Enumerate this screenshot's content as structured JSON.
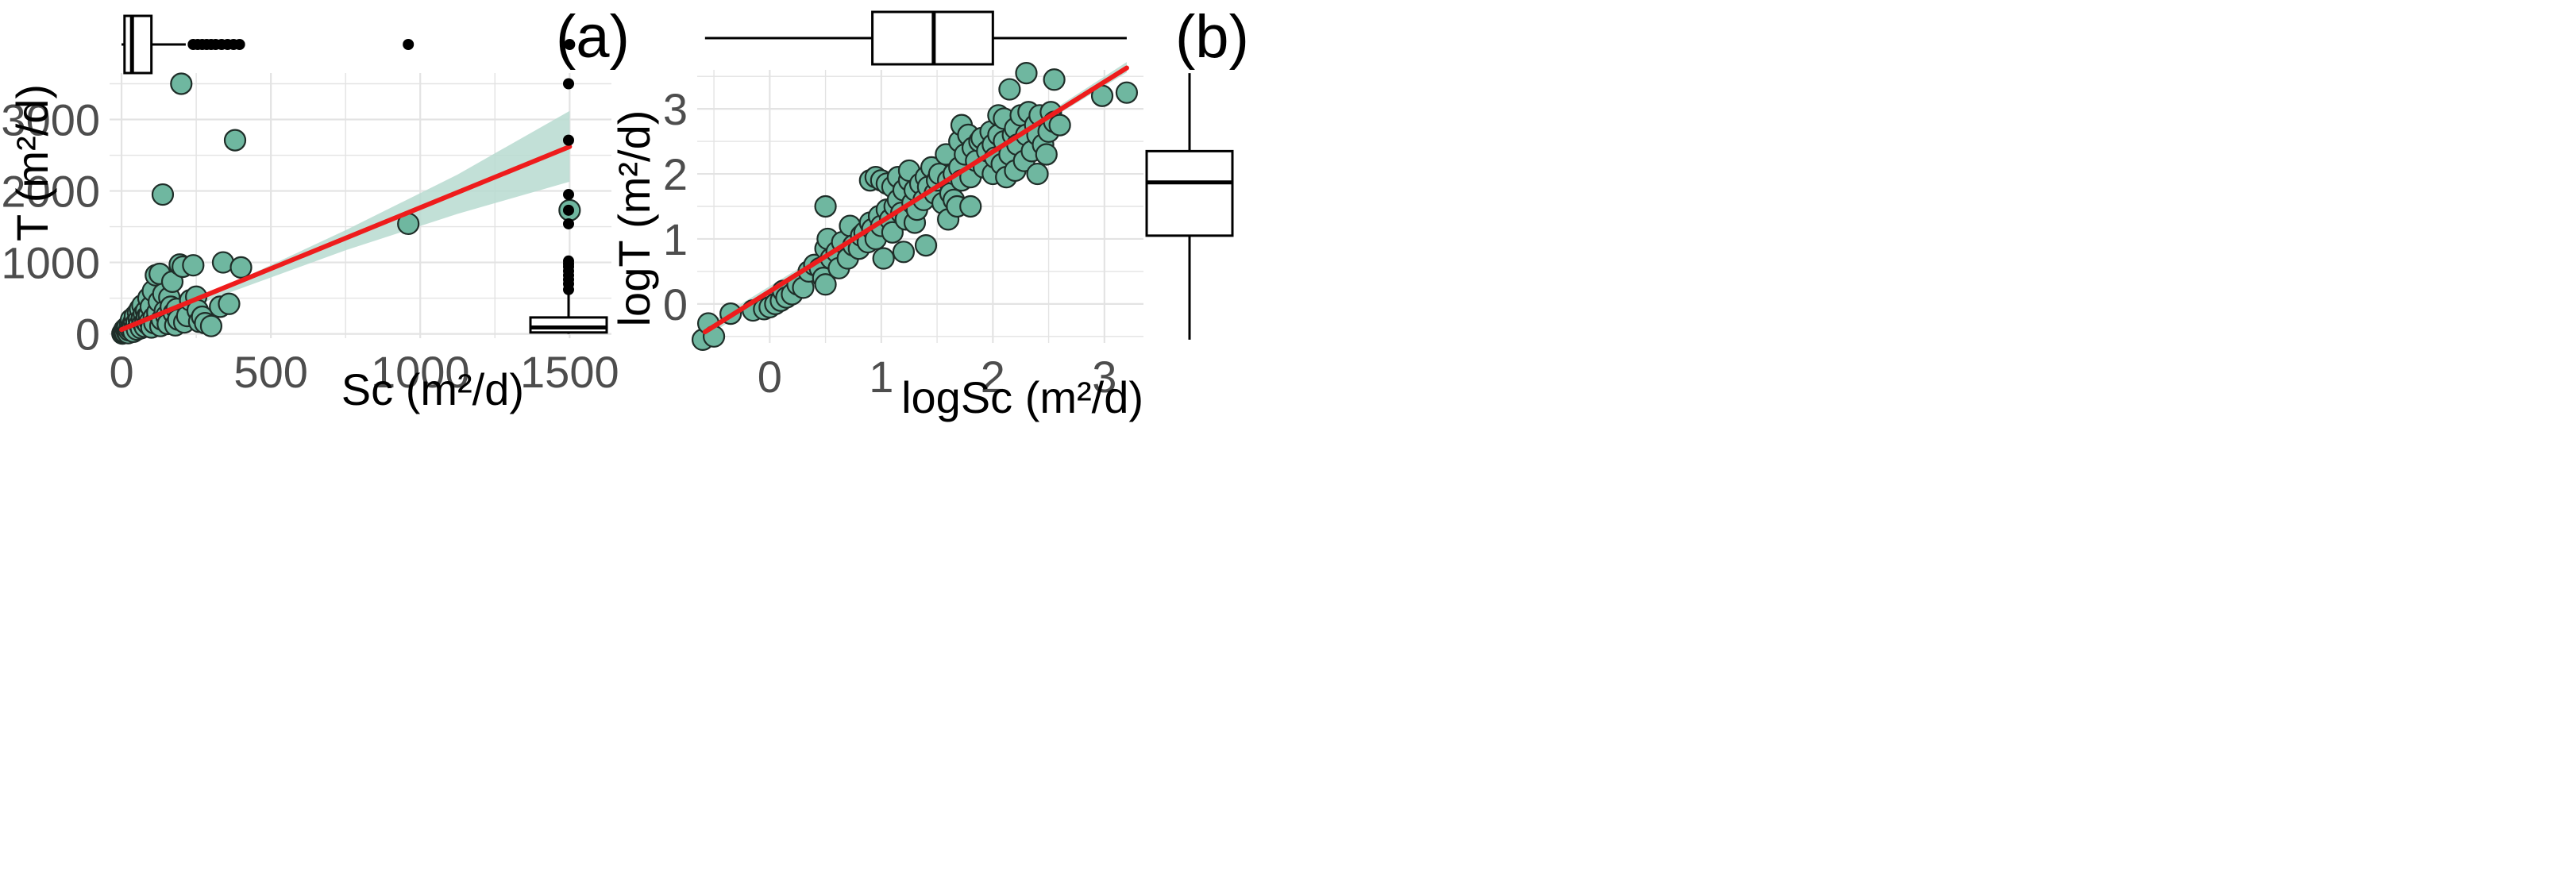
{
  "colors": {
    "point_fill": "#6fb7a0",
    "point_stroke": "#1f2d28",
    "fit_line": "#ee1c1c",
    "ribbon": "#b7dad0",
    "grid": "#e3e3e3",
    "box_stroke": "#000000"
  },
  "chart_data": [
    {
      "type": "scatter",
      "panel_label": "(a)",
      "xlabel": "Sc (m²/d)",
      "ylabel": "T (m²/d)",
      "xlim": [
        -40,
        1640
      ],
      "ylim": [
        -60,
        3650
      ],
      "x_ticks": [
        0,
        500,
        1000,
        1500
      ],
      "x_tick_labels": [
        "0",
        "500",
        "1000",
        "1500"
      ],
      "y_ticks": [
        0,
        1000,
        2000,
        3000
      ],
      "y_tick_labels": [
        "0",
        "1000",
        "2000",
        "3000"
      ],
      "grid": true,
      "fit": {
        "x0": 0,
        "y0": 60,
        "x1": 1500,
        "y1": 2620
      },
      "ribbon": {
        "x": [
          0,
          375,
          750,
          1125,
          1500
        ],
        "lower": [
          10,
          600,
          1170,
          1680,
          2130
        ],
        "upper": [
          110,
          720,
          1450,
          2230,
          3120
        ]
      },
      "points": [
        [
          3,
          5
        ],
        [
          5,
          20
        ],
        [
          8,
          40
        ],
        [
          10,
          60
        ],
        [
          12,
          15
        ],
        [
          15,
          80
        ],
        [
          18,
          30
        ],
        [
          20,
          100
        ],
        [
          22,
          10
        ],
        [
          25,
          50
        ],
        [
          28,
          120
        ],
        [
          30,
          70
        ],
        [
          32,
          200
        ],
        [
          35,
          90
        ],
        [
          38,
          140
        ],
        [
          40,
          30
        ],
        [
          42,
          180
        ],
        [
          45,
          250
        ],
        [
          48,
          110
        ],
        [
          50,
          160
        ],
        [
          52,
          60
        ],
        [
          55,
          300
        ],
        [
          58,
          200
        ],
        [
          60,
          130
        ],
        [
          62,
          350
        ],
        [
          65,
          80
        ],
        [
          68,
          220
        ],
        [
          70,
          400
        ],
        [
          72,
          150
        ],
        [
          75,
          280
        ],
        [
          78,
          100
        ],
        [
          80,
          180
        ],
        [
          82,
          320
        ],
        [
          85,
          240
        ],
        [
          88,
          140
        ],
        [
          90,
          500
        ],
        [
          92,
          260
        ],
        [
          95,
          170
        ],
        [
          98,
          380
        ],
        [
          100,
          90
        ],
        [
          105,
          600
        ],
        [
          108,
          230
        ],
        [
          110,
          150
        ],
        [
          115,
          820
        ],
        [
          120,
          300
        ],
        [
          125,
          450
        ],
        [
          128,
          840
        ],
        [
          130,
          110
        ],
        [
          135,
          200
        ],
        [
          138,
          1950
        ],
        [
          140,
          560
        ],
        [
          145,
          320
        ],
        [
          150,
          250
        ],
        [
          155,
          140
        ],
        [
          160,
          510
        ],
        [
          165,
          380
        ],
        [
          170,
          730
        ],
        [
          175,
          290
        ],
        [
          180,
          120
        ],
        [
          185,
          350
        ],
        [
          190,
          200
        ],
        [
          195,
          970
        ],
        [
          200,
          3500
        ],
        [
          205,
          940
        ],
        [
          210,
          160
        ],
        [
          220,
          250
        ],
        [
          230,
          470
        ],
        [
          240,
          960
        ],
        [
          250,
          520
        ],
        [
          255,
          330
        ],
        [
          260,
          170
        ],
        [
          270,
          240
        ],
        [
          280,
          150
        ],
        [
          300,
          110
        ],
        [
          330,
          380
        ],
        [
          340,
          1000
        ],
        [
          360,
          420
        ],
        [
          380,
          2710
        ],
        [
          400,
          930
        ],
        [
          960,
          1540
        ],
        [
          1500,
          1730
        ]
      ],
      "top_box": {
        "min": 0,
        "q1": 10,
        "median": 35,
        "q3": 100,
        "max": 215,
        "outliers": [
          240,
          255,
          270,
          285,
          300,
          315,
          335,
          355,
          375,
          395,
          960,
          1500
        ]
      },
      "right_box": {
        "min": 0,
        "q1": 20,
        "median": 90,
        "q3": 230,
        "max": 560,
        "outliers": [
          620,
          700,
          760,
          820,
          880,
          940,
          980,
          1020,
          1540,
          1730,
          1950,
          2710,
          3500
        ]
      }
    },
    {
      "type": "scatter",
      "panel_label": "(b)",
      "xlabel": "logSc (m²/d)",
      "ylabel": "logT (m²/d)",
      "xlim": [
        -0.65,
        3.35
      ],
      "ylim": [
        -0.6,
        3.6
      ],
      "x_ticks": [
        0,
        1,
        2,
        3
      ],
      "x_tick_labels": [
        "0",
        "1",
        "2",
        "3"
      ],
      "y_ticks": [
        0,
        1,
        2,
        3
      ],
      "y_tick_labels": [
        "0",
        "1",
        "2",
        "3"
      ],
      "grid": true,
      "fit": {
        "x0": -0.58,
        "y0": -0.43,
        "x1": 3.2,
        "y1": 3.63
      },
      "ribbon": {
        "x": [
          -0.58,
          0.5,
          1.4,
          2.3,
          3.2
        ],
        "lower": [
          -0.52,
          0.7,
          1.66,
          2.62,
          3.56
        ],
        "upper": [
          -0.34,
          0.8,
          1.74,
          2.72,
          3.72
        ]
      },
      "points": [
        [
          -0.6,
          -0.55
        ],
        [
          -0.55,
          -0.3
        ],
        [
          -0.5,
          -0.5
        ],
        [
          -0.35,
          -0.15
        ],
        [
          -0.15,
          -0.1
        ],
        [
          -0.05,
          -0.08
        ],
        [
          0,
          -0.05
        ],
        [
          0.05,
          0
        ],
        [
          0.1,
          0.05
        ],
        [
          0.12,
          0.2
        ],
        [
          0.15,
          0.1
        ],
        [
          0.2,
          0.15
        ],
        [
          0.25,
          0.3
        ],
        [
          0.3,
          0.25
        ],
        [
          0.35,
          0.5
        ],
        [
          0.4,
          0.6
        ],
        [
          0.45,
          0.55
        ],
        [
          0.48,
          0.4
        ],
        [
          0.5,
          0.3
        ],
        [
          0.5,
          1.5
        ],
        [
          0.5,
          0.85
        ],
        [
          0.52,
          1.0
        ],
        [
          0.55,
          0.7
        ],
        [
          0.6,
          0.8
        ],
        [
          0.62,
          0.55
        ],
        [
          0.65,
          0.95
        ],
        [
          0.7,
          0.7
        ],
        [
          0.72,
          1.2
        ],
        [
          0.75,
          0.9
        ],
        [
          0.8,
          0.85
        ],
        [
          0.82,
          1.05
        ],
        [
          0.85,
          1.1
        ],
        [
          0.88,
          0.95
        ],
        [
          0.9,
          1.9
        ],
        [
          0.9,
          1.25
        ],
        [
          0.92,
          1.15
        ],
        [
          0.95,
          1.0
        ],
        [
          0.95,
          1.95
        ],
        [
          0.98,
          1.35
        ],
        [
          1.0,
          1.9
        ],
        [
          1.0,
          1.2
        ],
        [
          1.02,
          0.7
        ],
        [
          1.05,
          1.45
        ],
        [
          1.05,
          1.85
        ],
        [
          1.08,
          1.3
        ],
        [
          1.1,
          1.8
        ],
        [
          1.1,
          1.1
        ],
        [
          1.12,
          1.5
        ],
        [
          1.15,
          1.6
        ],
        [
          1.15,
          1.95
        ],
        [
          1.18,
          1.4
        ],
        [
          1.2,
          0.8
        ],
        [
          1.2,
          1.75
        ],
        [
          1.22,
          1.3
        ],
        [
          1.25,
          1.9
        ],
        [
          1.25,
          2.05
        ],
        [
          1.28,
          1.55
        ],
        [
          1.3,
          1.25
        ],
        [
          1.3,
          1.75
        ],
        [
          1.32,
          1.45
        ],
        [
          1.35,
          1.85
        ],
        [
          1.38,
          1.6
        ],
        [
          1.4,
          1.95
        ],
        [
          1.4,
          0.9
        ],
        [
          1.42,
          1.8
        ],
        [
          1.45,
          2.1
        ],
        [
          1.48,
          1.7
        ],
        [
          1.5,
          1.9
        ],
        [
          1.52,
          2.0
        ],
        [
          1.55,
          1.55
        ],
        [
          1.58,
          2.3
        ],
        [
          1.6,
          1.3
        ],
        [
          1.6,
          1.9
        ],
        [
          1.62,
          1.7
        ],
        [
          1.65,
          1.6
        ],
        [
          1.65,
          2.0
        ],
        [
          1.68,
          1.5
        ],
        [
          1.7,
          2.5
        ],
        [
          1.7,
          2.1
        ],
        [
          1.72,
          1.9
        ],
        [
          1.72,
          2.75
        ],
        [
          1.75,
          2.3
        ],
        [
          1.78,
          2.6
        ],
        [
          1.8,
          1.95
        ],
        [
          1.8,
          1.5
        ],
        [
          1.82,
          2.4
        ],
        [
          1.85,
          2.2
        ],
        [
          1.88,
          2.5
        ],
        [
          1.9,
          2.55
        ],
        [
          1.92,
          2.1
        ],
        [
          1.95,
          2.35
        ],
        [
          1.98,
          2.65
        ],
        [
          2.0,
          2.0
        ],
        [
          2.0,
          2.45
        ],
        [
          2.02,
          2.25
        ],
        [
          2.05,
          2.6
        ],
        [
          2.05,
          2.9
        ],
        [
          2.08,
          2.15
        ],
        [
          2.1,
          2.5
        ],
        [
          2.1,
          2.85
        ],
        [
          2.12,
          1.95
        ],
        [
          2.15,
          2.3
        ],
        [
          2.15,
          3.3
        ],
        [
          2.18,
          2.6
        ],
        [
          2.2,
          2.05
        ],
        [
          2.2,
          2.7
        ],
        [
          2.22,
          2.45
        ],
        [
          2.25,
          2.9
        ],
        [
          2.28,
          2.2
        ],
        [
          2.3,
          2.6
        ],
        [
          2.3,
          3.55
        ],
        [
          2.32,
          2.95
        ],
        [
          2.35,
          2.35
        ],
        [
          2.38,
          2.75
        ],
        [
          2.4,
          2.6
        ],
        [
          2.4,
          2.0
        ],
        [
          2.42,
          2.9
        ],
        [
          2.45,
          2.45
        ],
        [
          2.48,
          2.3
        ],
        [
          2.5,
          2.65
        ],
        [
          2.52,
          2.95
        ],
        [
          2.55,
          2.8
        ],
        [
          2.55,
          3.45
        ],
        [
          2.6,
          2.75
        ],
        [
          2.98,
          3.2
        ],
        [
          3.2,
          3.25
        ]
      ],
      "top_box": {
        "min": -0.58,
        "q1": 0.92,
        "median": 1.47,
        "q3": 2.0,
        "max": 3.2,
        "outliers": []
      },
      "right_box": {
        "min": -0.55,
        "q1": 1.05,
        "median": 1.87,
        "q3": 2.35,
        "max": 3.55,
        "outliers": []
      }
    }
  ]
}
